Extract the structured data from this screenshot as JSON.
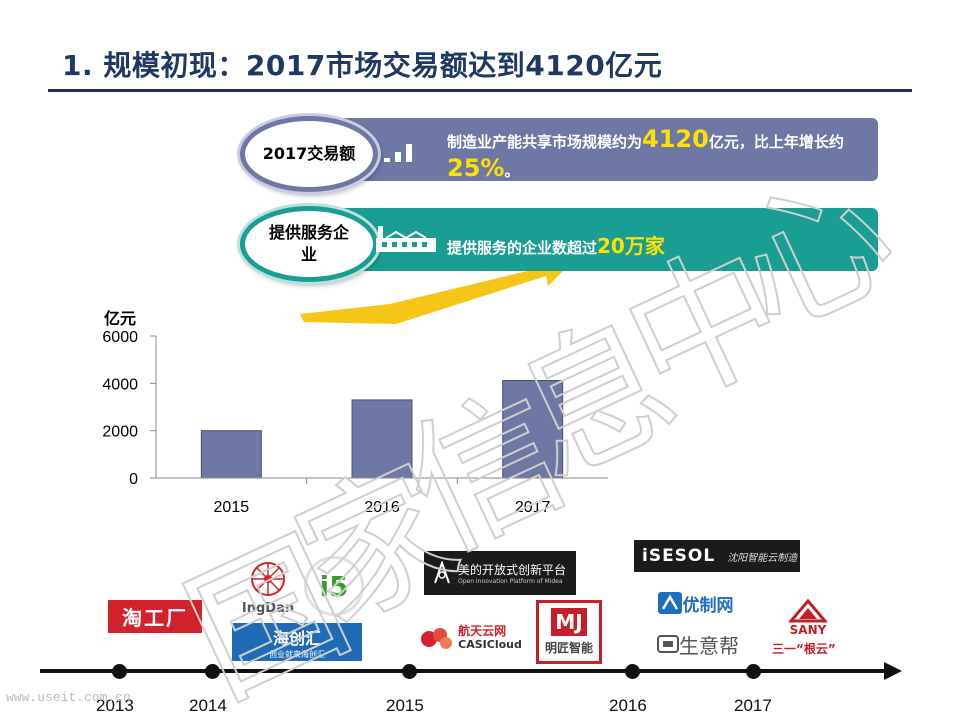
{
  "title": "1. 规模初现：2017市场交易额达到4120亿元",
  "rows": [
    {
      "badge": "2017交易额",
      "icon": "bar-chart-icon",
      "text_prefix": "制造业产能共享市场规模约为",
      "highlight_1": "4120",
      "text_mid_1": "亿元，比上年增长约",
      "highlight_2": "25%",
      "text_suffix": "。",
      "color": "#6f77a4"
    },
    {
      "badge": "提供服务企业",
      "icon": "factory-icon",
      "text_prefix": "提供服务的企业数超过",
      "highlight_1": "20万家",
      "color": "#1a9d93"
    }
  ],
  "chart_data": {
    "type": "bar",
    "ylabel": "亿元",
    "categories": [
      "2015",
      "2016",
      "2017"
    ],
    "values": [
      2000,
      3300,
      4120
    ],
    "ylim": [
      0,
      6000
    ],
    "yticks": [
      0,
      2000,
      4000,
      6000
    ],
    "bar_color": "#6f77a4",
    "grid": false
  },
  "timeline": {
    "years": [
      "2013",
      "2014",
      "2015",
      "2016",
      "2017"
    ]
  },
  "logos": {
    "taogongchang": "淘工厂",
    "ingdan": "IngDan",
    "i5": "i5",
    "haichuanghui": "海创汇",
    "haichuanghui_sub": "创业就来海创汇",
    "midea": "美的开放式创新平台",
    "midea_sub": "Open Innovation Platform of Midea",
    "casicloud": "航天云网",
    "casicloud_sub": "CASICloud",
    "mingjiang": "明匠智能",
    "isesol": "iSESOL",
    "isesol_sub": "沈阳智能云制造",
    "youzhiwang": "优制网",
    "shengyibang": "生意帮",
    "sany_label": "SANY",
    "sany_sub": "三一“根云”"
  },
  "watermark": {
    "chars": [
      "国",
      "家",
      "信",
      "息",
      "中",
      "心"
    ],
    "url": "www.useit.com.cn"
  }
}
